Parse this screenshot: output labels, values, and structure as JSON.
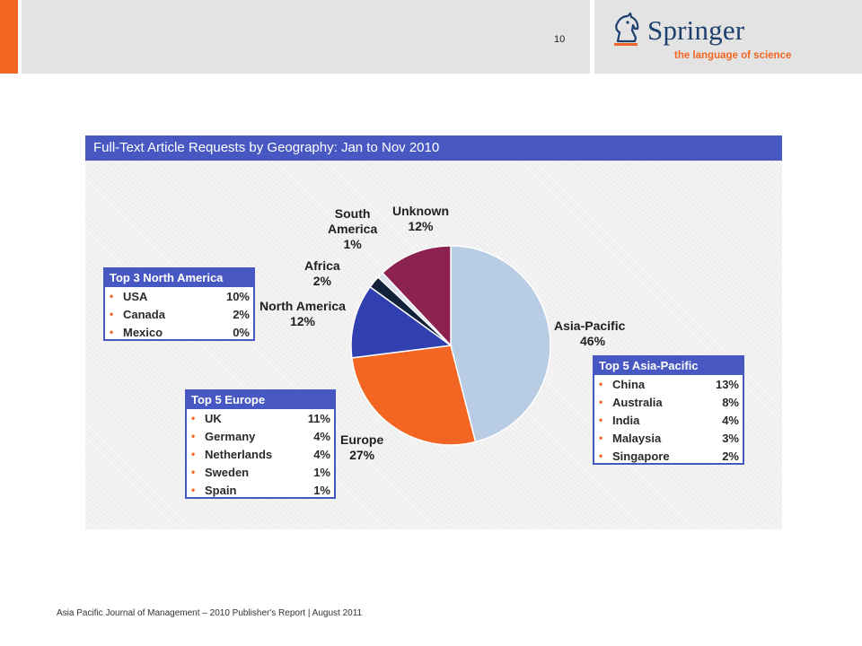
{
  "header": {
    "page_number": "10",
    "logo_name": "Springer",
    "logo_tagline": "the language of science"
  },
  "colors": {
    "accent": "#f26522",
    "panel_header": "#4758c2",
    "logo_text": "#1d3f6e"
  },
  "chart_data": {
    "type": "pie",
    "title": "Full-Text Article Requests by Geography: Jan to Nov 2010",
    "slices": [
      {
        "label": "Asia-Pacific",
        "value": 46,
        "percent_label": "46%",
        "color": "#b8cce4"
      },
      {
        "label": "Europe",
        "value": 27,
        "percent_label": "27%",
        "color": "#f26522"
      },
      {
        "label": "North America",
        "value": 12,
        "percent_label": "12%",
        "color": "#3040b0"
      },
      {
        "label": "Africa",
        "value": 2,
        "percent_label": "2%",
        "color": "#12213a"
      },
      {
        "label": "South America",
        "value": 1,
        "percent_label": "1%",
        "color": "#dde4ee"
      },
      {
        "label": "Unknown",
        "value": 12,
        "percent_label": "12%",
        "color": "#8b2250"
      }
    ],
    "label_lines": {
      "asia_pacific": [
        "Asia-Pacific",
        "46%"
      ],
      "europe": [
        "Europe",
        "27%"
      ],
      "north_america": [
        "North America",
        "12%"
      ],
      "africa": [
        "Africa",
        "2%"
      ],
      "south_america": [
        "South",
        "America",
        "1%"
      ],
      "unknown": [
        "Unknown",
        "12%"
      ]
    },
    "breakdowns": {
      "north_america": {
        "title": "Top 3 North America",
        "rows": [
          [
            "USA",
            "10%"
          ],
          [
            "Canada",
            "2%"
          ],
          [
            "Mexico",
            "0%"
          ]
        ]
      },
      "europe": {
        "title": "Top 5 Europe",
        "rows": [
          [
            "UK",
            "11%"
          ],
          [
            "Germany",
            "4%"
          ],
          [
            "Netherlands",
            "4%"
          ],
          [
            "Sweden",
            "1%"
          ],
          [
            "Spain",
            "1%"
          ]
        ]
      },
      "asia_pacific": {
        "title": "Top 5 Asia-Pacific",
        "rows": [
          [
            "China",
            "13%"
          ],
          [
            "Australia",
            "8%"
          ],
          [
            "India",
            "4%"
          ],
          [
            "Malaysia",
            "3%"
          ],
          [
            "Singapore",
            "2%"
          ]
        ]
      }
    }
  },
  "footer": {
    "text": "Asia Pacific Journal of Management – 2010 Publisher's Report  |  August 2011"
  }
}
